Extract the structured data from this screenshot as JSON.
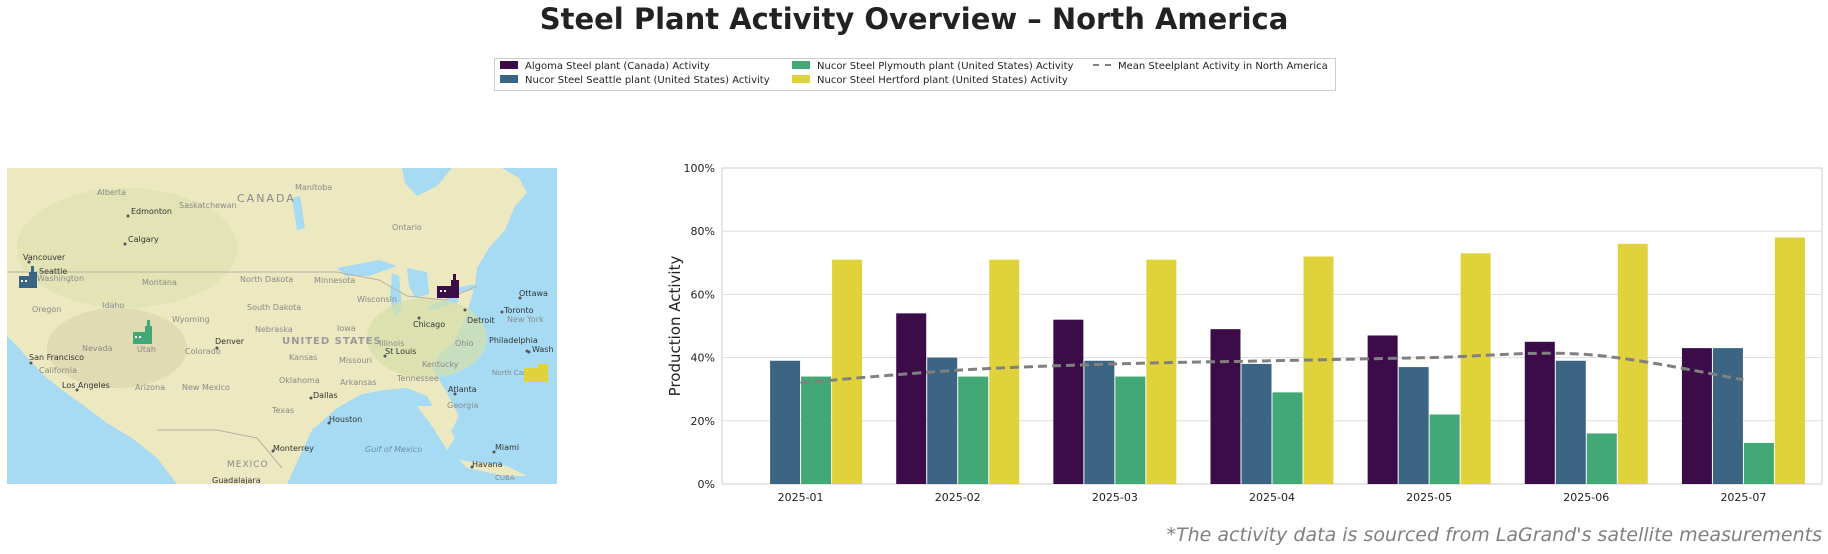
{
  "title": "Steel Plant Activity Overview – North America",
  "source_note": "*The activity data is sourced from LaGrand's satellite measurements",
  "colors": {
    "algoma": "#3b0c48",
    "seattle": "#3b6583",
    "plymouth": "#42a876",
    "hertford": "#e0d23a",
    "mean": "#808080"
  },
  "map": {
    "labels": {
      "canada": "CANADA",
      "alberta": "Alberta",
      "saskatchewan": "Saskatchewan",
      "manitoba": "Manitoba",
      "ontario": "Ontario",
      "edmonton": "Edmonton",
      "calgary": "Calgary",
      "vancouver": "Vancouver",
      "seattle": "Seattle",
      "washington": "Washington",
      "montana": "Montana",
      "north_dakota": "North Dakota",
      "minnesota": "Minnesota",
      "oregon": "Oregon",
      "idaho": "Idaho",
      "wyoming": "Wyoming",
      "south_dakota": "South Dakota",
      "wisconsin": "Wisconsin",
      "nebraska": "Nebraska",
      "iowa": "Iowa",
      "chicago": "Chicago",
      "detroit": "Detroit",
      "toronto": "Toronto",
      "ottawa": "Ottawa",
      "new_york": "New York",
      "nevada": "Nevada",
      "utah": "Utah",
      "colorado": "Colorado",
      "denver": "Denver",
      "united_states": "UNITED STATES",
      "kansas": "Kansas",
      "missouri": "Missouri",
      "illinois": "Illinois",
      "ohio": "Ohio",
      "st_louis": "St Louis",
      "kentucky": "Kentucky",
      "philadelphia": "Philadelphia",
      "washington_dc": "Wash",
      "san_francisco": "San Francisco",
      "california": "California",
      "los_angeles": "Los Angeles",
      "arizona": "Arizona",
      "new_mexico": "New Mexico",
      "oklahoma": "Oklahoma",
      "arkansas": "Arkansas",
      "tennessee": "Tennessee",
      "north_carolina": "North Carolina",
      "atlanta": "Atlanta",
      "georgia": "Georgia",
      "dallas": "Dallas",
      "texas": "Texas",
      "houston": "Houston",
      "monterrey": "Monterrey",
      "gulf_of_mexico": "Gulf of Mexico",
      "mexico": "MEXICO",
      "miami": "Miami",
      "havana": "Havana",
      "cuba": "CUBA",
      "guadalajara": "Guadalajara"
    }
  },
  "chart_data": {
    "type": "bar",
    "title": "",
    "xlabel": "",
    "ylabel": "Production Activity",
    "ylim": [
      0,
      100
    ],
    "yticks": [
      "0%",
      "20%",
      "40%",
      "60%",
      "80%",
      "100%"
    ],
    "grid": true,
    "legend_position": "top-center",
    "categories": [
      "2025-01",
      "2025-02",
      "2025-03",
      "2025-04",
      "2025-05",
      "2025-06",
      "2025-07"
    ],
    "series": [
      {
        "name": "Algoma Steel plant (Canada) Activity",
        "color_key": "algoma",
        "values": [
          null,
          54,
          52,
          49,
          47,
          45,
          43
        ]
      },
      {
        "name": "Nucor Steel Seattle plant (United States) Activity",
        "color_key": "seattle",
        "values": [
          39,
          40,
          39,
          38,
          37,
          39,
          43
        ]
      },
      {
        "name": "Nucor Steel Plymouth plant (United States) Activity",
        "color_key": "plymouth",
        "values": [
          34,
          34,
          34,
          29,
          22,
          16,
          13
        ]
      },
      {
        "name": "Nucor Steel Hertford plant (United States) Activity",
        "color_key": "hertford",
        "values": [
          71,
          71,
          71,
          72,
          73,
          76,
          78
        ]
      }
    ],
    "mean_line": {
      "name": "Mean Steelplant Activity in North America",
      "style": "dashed",
      "values": [
        32,
        36,
        38,
        39,
        40,
        41,
        33
      ]
    }
  }
}
